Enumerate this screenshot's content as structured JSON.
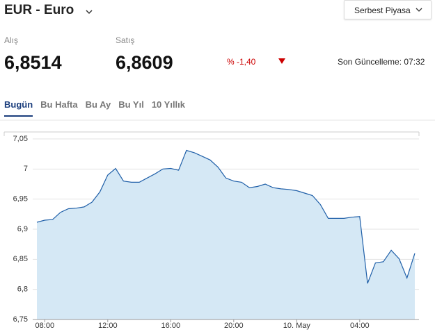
{
  "header": {
    "title": "EUR - Euro",
    "market": "Serbest Piyasa"
  },
  "quotes": {
    "buy_label": "Alış",
    "buy": "6,8514",
    "sell_label": "Satış",
    "sell": "6,8609",
    "change": "% -1,40",
    "updated": "Son Güncelleme: 07:32"
  },
  "tabs": [
    {
      "label": "Bugün",
      "active": true
    },
    {
      "label": "Bu Hafta",
      "active": false
    },
    {
      "label": "Bu Ay",
      "active": false
    },
    {
      "label": "Bu Yıl",
      "active": false
    },
    {
      "label": "10 Yıllık",
      "active": false
    }
  ],
  "chart_data": {
    "type": "area",
    "categories": [
      null,
      "08:00",
      null,
      null,
      null,
      null,
      null,
      null,
      null,
      "12:00",
      null,
      null,
      null,
      null,
      null,
      null,
      null,
      "16:00",
      null,
      null,
      null,
      null,
      null,
      null,
      null,
      "20:00",
      null,
      null,
      null,
      null,
      null,
      null,
      null,
      "10. May",
      null,
      null,
      null,
      null,
      null,
      null,
      null,
      "04:00",
      null,
      null,
      null,
      null,
      null,
      null,
      null
    ],
    "values": [
      6.9115,
      6.915,
      6.916,
      6.928,
      6.934,
      6.935,
      6.937,
      6.945,
      6.962,
      6.99,
      7.001,
      6.98,
      6.978,
      6.978,
      6.985,
      6.992,
      7.0,
      7.001,
      6.998,
      7.031,
      7.027,
      7.021,
      7.015,
      7.003,
      6.985,
      6.98,
      6.978,
      6.969,
      6.971,
      6.975,
      6.969,
      6.967,
      6.966,
      6.964,
      6.96,
      6.956,
      6.941,
      6.918,
      6.918,
      6.918,
      6.92,
      6.921,
      6.81,
      6.844,
      6.846,
      6.865,
      6.851,
      6.819,
      6.86
    ],
    "color": "#1f5fa8",
    "fill": "#d5e8f5",
    "ylim": [
      6.75,
      7.05
    ],
    "yticks": [
      {
        "value": 6.75,
        "label": "6,75"
      },
      {
        "value": 6.8,
        "label": "6,8"
      },
      {
        "value": 6.85,
        "label": "6,85"
      },
      {
        "value": 6.9,
        "label": "6,9"
      },
      {
        "value": 6.95,
        "label": "6,95"
      },
      7,
      {
        "value": 7.05,
        "label": "7,05"
      }
    ],
    "grid": true
  }
}
